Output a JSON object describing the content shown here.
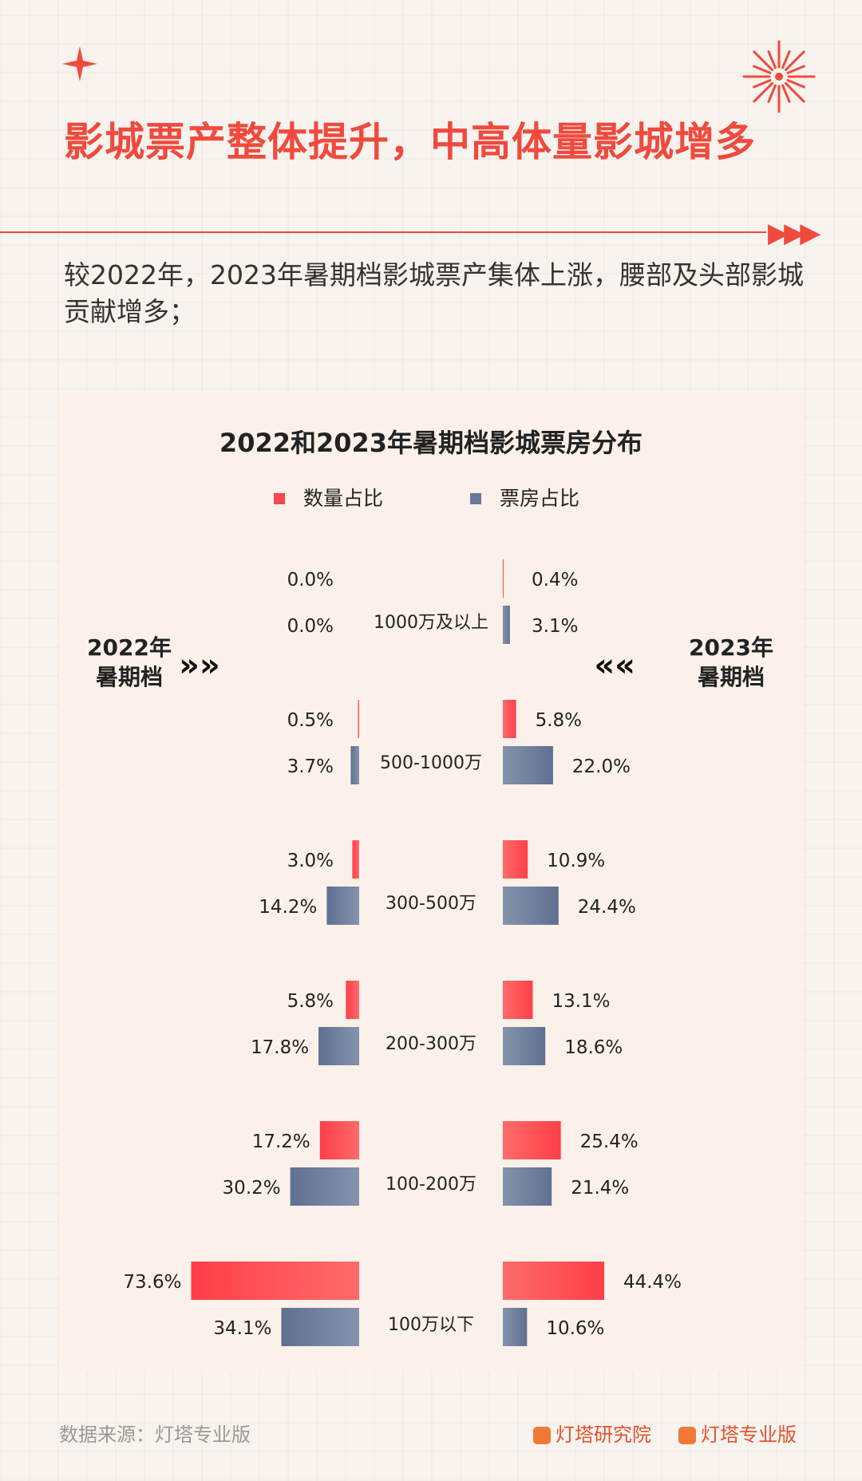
{
  "title": "影城票产整体提升，中高体量影城增多",
  "description": "较2022年，2023年暑期档影城票产集体上涨，腰部及头部影城贡献增多；",
  "source": "数据来源：灯塔专业版",
  "brands": [
    "灯塔研究院",
    "灯塔专业版"
  ],
  "colors": {
    "accent": "#f04a3e",
    "count_bar": "#f6474a",
    "boxoffice_bar": "#67799a"
  },
  "chart_data": {
    "type": "bar",
    "title": "2022和2023年暑期档影城票房分布",
    "legend": [
      "数量占比",
      "票房占比"
    ],
    "legend_position": "top",
    "left_label": "2022年\n暑期档",
    "right_label": "2023年\n暑期档",
    "categories": [
      "1000万及以上",
      "500-1000万",
      "300-500万",
      "200-300万",
      "100-200万",
      "100万以下"
    ],
    "series": [
      {
        "name": "数量占比",
        "year": "2022年",
        "values": [
          0.0,
          0.5,
          3.0,
          5.8,
          17.2,
          73.6
        ]
      },
      {
        "name": "票房占比",
        "year": "2022年",
        "values": [
          0.0,
          3.7,
          14.2,
          17.8,
          30.2,
          34.1
        ]
      },
      {
        "name": "数量占比",
        "year": "2023年",
        "values": [
          0.4,
          5.8,
          10.9,
          13.1,
          25.4,
          44.4
        ]
      },
      {
        "name": "票房占比",
        "year": "2023年",
        "values": [
          3.1,
          22.0,
          24.4,
          18.6,
          21.4,
          10.6
        ]
      }
    ],
    "unit": "%"
  }
}
